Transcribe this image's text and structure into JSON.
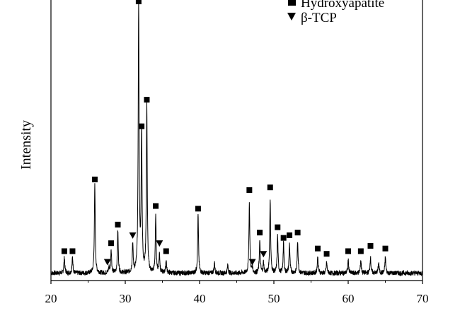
{
  "chart_data": {
    "type": "line",
    "title": "",
    "xlabel": "",
    "ylabel": "Intensity",
    "xlim": [
      20,
      70
    ],
    "x_ticks": [
      "20",
      "30",
      "40",
      "50",
      "60",
      "70"
    ],
    "y_ticks": [],
    "grid": false,
    "legend": {
      "placement": "top-right",
      "entries": [
        {
          "marker": "square",
          "label": "Hydroxyapatite"
        },
        {
          "marker": "triangle-down",
          "label": "β-TCP"
        }
      ]
    },
    "series": [
      {
        "type": "xrd-pattern",
        "peaks": [
          {
            "x": 21.8,
            "h": 0.06
          },
          {
            "x": 22.9,
            "h": 0.06
          },
          {
            "x": 25.9,
            "h": 0.33
          },
          {
            "x": 27.8,
            "h": 0.02
          },
          {
            "x": 28.1,
            "h": 0.09
          },
          {
            "x": 29.0,
            "h": 0.16
          },
          {
            "x": 31.0,
            "h": 0.11
          },
          {
            "x": 31.8,
            "h": 1.0
          },
          {
            "x": 32.2,
            "h": 0.53
          },
          {
            "x": 32.9,
            "h": 0.63
          },
          {
            "x": 34.1,
            "h": 0.21
          },
          {
            "x": 34.6,
            "h": 0.07
          },
          {
            "x": 35.5,
            "h": 0.05
          },
          {
            "x": 39.8,
            "h": 0.22
          },
          {
            "x": 42.0,
            "h": 0.04
          },
          {
            "x": 43.8,
            "h": 0.03
          },
          {
            "x": 46.7,
            "h": 0.26
          },
          {
            "x": 47.1,
            "h": 0.02
          },
          {
            "x": 48.1,
            "h": 0.12
          },
          {
            "x": 48.6,
            "h": 0.04
          },
          {
            "x": 49.5,
            "h": 0.28
          },
          {
            "x": 50.5,
            "h": 0.14
          },
          {
            "x": 51.3,
            "h": 0.11
          },
          {
            "x": 52.1,
            "h": 0.11
          },
          {
            "x": 53.2,
            "h": 0.12
          },
          {
            "x": 55.9,
            "h": 0.06
          },
          {
            "x": 57.1,
            "h": 0.04
          },
          {
            "x": 60.0,
            "h": 0.05
          },
          {
            "x": 61.7,
            "h": 0.05
          },
          {
            "x": 63.0,
            "h": 0.06
          },
          {
            "x": 64.1,
            "h": 0.04
          },
          {
            "x": 65.0,
            "h": 0.06
          }
        ]
      }
    ],
    "markers": [
      {
        "x": 21.8,
        "type": "square",
        "h": 0.06
      },
      {
        "x": 22.9,
        "type": "square",
        "h": 0.06
      },
      {
        "x": 25.9,
        "type": "square",
        "h": 0.33
      },
      {
        "x": 27.6,
        "type": "triangle",
        "h": 0.02
      },
      {
        "x": 28.1,
        "type": "square",
        "h": 0.09
      },
      {
        "x": 29.0,
        "type": "square",
        "h": 0.16
      },
      {
        "x": 31.0,
        "type": "triangle",
        "h": 0.12
      },
      {
        "x": 31.8,
        "type": "square",
        "h": 1.0
      },
      {
        "x": 32.2,
        "type": "square",
        "h": 0.53
      },
      {
        "x": 32.9,
        "type": "square",
        "h": 0.63
      },
      {
        "x": 34.1,
        "type": "square",
        "h": 0.23
      },
      {
        "x": 34.6,
        "type": "triangle",
        "h": 0.09
      },
      {
        "x": 35.5,
        "type": "square",
        "h": 0.06
      },
      {
        "x": 39.8,
        "type": "square",
        "h": 0.22
      },
      {
        "x": 46.7,
        "type": "square",
        "h": 0.29
      },
      {
        "x": 47.1,
        "type": "triangle",
        "h": 0.02
      },
      {
        "x": 48.1,
        "type": "square",
        "h": 0.13
      },
      {
        "x": 48.6,
        "type": "triangle",
        "h": 0.05
      },
      {
        "x": 49.5,
        "type": "square",
        "h": 0.3
      },
      {
        "x": 50.5,
        "type": "square",
        "h": 0.15
      },
      {
        "x": 51.3,
        "type": "square",
        "h": 0.11
      },
      {
        "x": 52.1,
        "type": "square",
        "h": 0.12
      },
      {
        "x": 53.2,
        "type": "square",
        "h": 0.13
      },
      {
        "x": 55.9,
        "type": "square",
        "h": 0.07
      },
      {
        "x": 57.1,
        "type": "square",
        "h": 0.05
      },
      {
        "x": 60.0,
        "type": "square",
        "h": 0.06
      },
      {
        "x": 61.7,
        "type": "square",
        "h": 0.06
      },
      {
        "x": 63.0,
        "type": "square",
        "h": 0.08
      },
      {
        "x": 65.0,
        "type": "square",
        "h": 0.07
      }
    ]
  }
}
